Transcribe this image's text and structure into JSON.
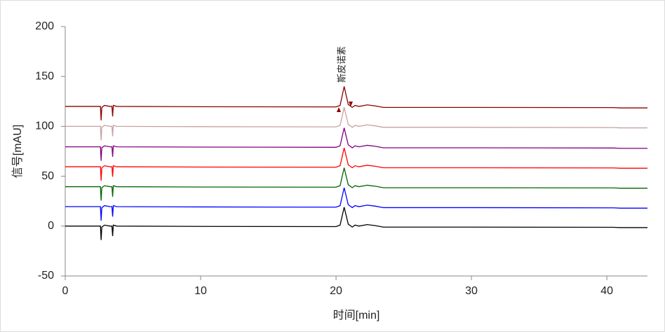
{
  "chart_data": {
    "type": "line",
    "x_label": "时间[min]",
    "y_label": "信号[mAU]",
    "annotations": [
      {
        "text": "斯皮诺素"
      }
    ],
    "x": [
      0,
      2.6,
      2.65,
      2.7,
      2.9,
      3.3,
      3.45,
      3.5,
      3.55,
      3.8,
      10,
      20,
      20.3,
      20.6,
      20.9,
      21.2,
      21.4,
      21.7,
      22.3,
      22.9,
      23.5,
      30,
      40.5,
      41,
      43
    ],
    "series": [
      {
        "color": "#000000",
        "values": [
          0,
          0,
          -14,
          -1,
          1,
          0,
          0,
          -10,
          1,
          0,
          -0.3,
          -0.5,
          1,
          19,
          2,
          -1,
          1,
          0,
          1.5,
          0.5,
          -1,
          -1,
          -1.2,
          -1.5,
          -1.5
        ]
      },
      {
        "color": "#0000ff",
        "values": [
          19.5,
          19.5,
          5.5,
          18.5,
          20.5,
          19.5,
          19.5,
          9.5,
          20.5,
          19.5,
          19.2,
          19,
          20.5,
          38.5,
          21.5,
          18.5,
          20.5,
          19.5,
          21,
          20,
          18.5,
          18.5,
          18.3,
          18,
          18
        ]
      },
      {
        "color": "#006400",
        "values": [
          39.5,
          39.5,
          25.5,
          38.5,
          40.5,
          39.5,
          39.5,
          29.5,
          40.5,
          39.5,
          39.2,
          39,
          40.5,
          58.5,
          41.5,
          38.5,
          40.5,
          39.5,
          41,
          40,
          38.5,
          38.5,
          38.3,
          38,
          38
        ]
      },
      {
        "color": "#ff0000",
        "values": [
          59.5,
          59.5,
          45.5,
          58.5,
          60.5,
          59.5,
          59.5,
          49.5,
          60.5,
          59.5,
          59.2,
          59,
          60.5,
          78.5,
          61.5,
          58.5,
          60.5,
          59.5,
          61,
          60,
          58.5,
          58.5,
          58.3,
          58,
          58
        ]
      },
      {
        "color": "#800080",
        "values": [
          79.5,
          79.5,
          65.5,
          78.5,
          80.5,
          79.5,
          79.5,
          69.5,
          80.5,
          79.5,
          79.2,
          79,
          80.5,
          98.5,
          81.5,
          78.5,
          80.5,
          79.5,
          81,
          80,
          78.5,
          78.5,
          78.3,
          78,
          78
        ]
      },
      {
        "color": "#c8a0a0",
        "values": [
          100,
          100,
          86,
          99,
          101,
          100,
          100,
          90,
          101,
          100,
          99.7,
          99.5,
          101,
          119,
          102,
          99,
          101,
          100,
          101.5,
          100.5,
          99,
          99,
          98.8,
          98.5,
          98.5
        ]
      },
      {
        "color": "#8b0000",
        "values": [
          120,
          120,
          106,
          119,
          121,
          120,
          120,
          110,
          121,
          120,
          119.7,
          119.5,
          121,
          140,
          122,
          119,
          121,
          120,
          121.5,
          120.5,
          119,
          119,
          118.8,
          118.5,
          118.5
        ]
      }
    ],
    "xlim": [
      0,
      43
    ],
    "xticks": [
      0,
      10,
      20,
      30,
      40
    ],
    "ylim": [
      -50,
      200
    ],
    "yticks": [
      -50,
      0,
      50,
      100,
      150,
      200
    ]
  }
}
